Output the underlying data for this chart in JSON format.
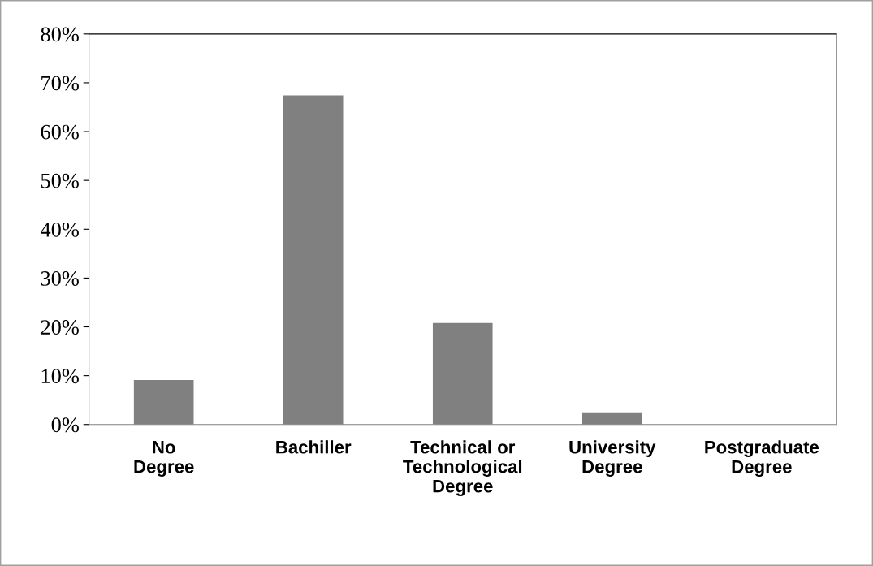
{
  "chart_data": {
    "type": "bar",
    "categories": [
      "No\nDegree",
      "Bachiller",
      "Technical or\nTechnological\nDegree",
      "University\nDegree",
      "Postgraduate\nDegree"
    ],
    "values": [
      9.1,
      67.4,
      20.8,
      2.5,
      0
    ],
    "color": "#808080",
    "ylim": [
      0,
      80
    ],
    "yticks": [
      {
        "value": 0,
        "label": "0%"
      },
      {
        "value": 10,
        "label": "10%"
      },
      {
        "value": 20,
        "label": "20%"
      },
      {
        "value": 30,
        "label": "30%"
      },
      {
        "value": 40,
        "label": "40%"
      },
      {
        "value": 50,
        "label": "50%"
      },
      {
        "value": 60,
        "label": "60%"
      },
      {
        "value": 70,
        "label": "70%"
      },
      {
        "value": 80,
        "label": "80%"
      }
    ],
    "grid": false,
    "legend": false
  }
}
